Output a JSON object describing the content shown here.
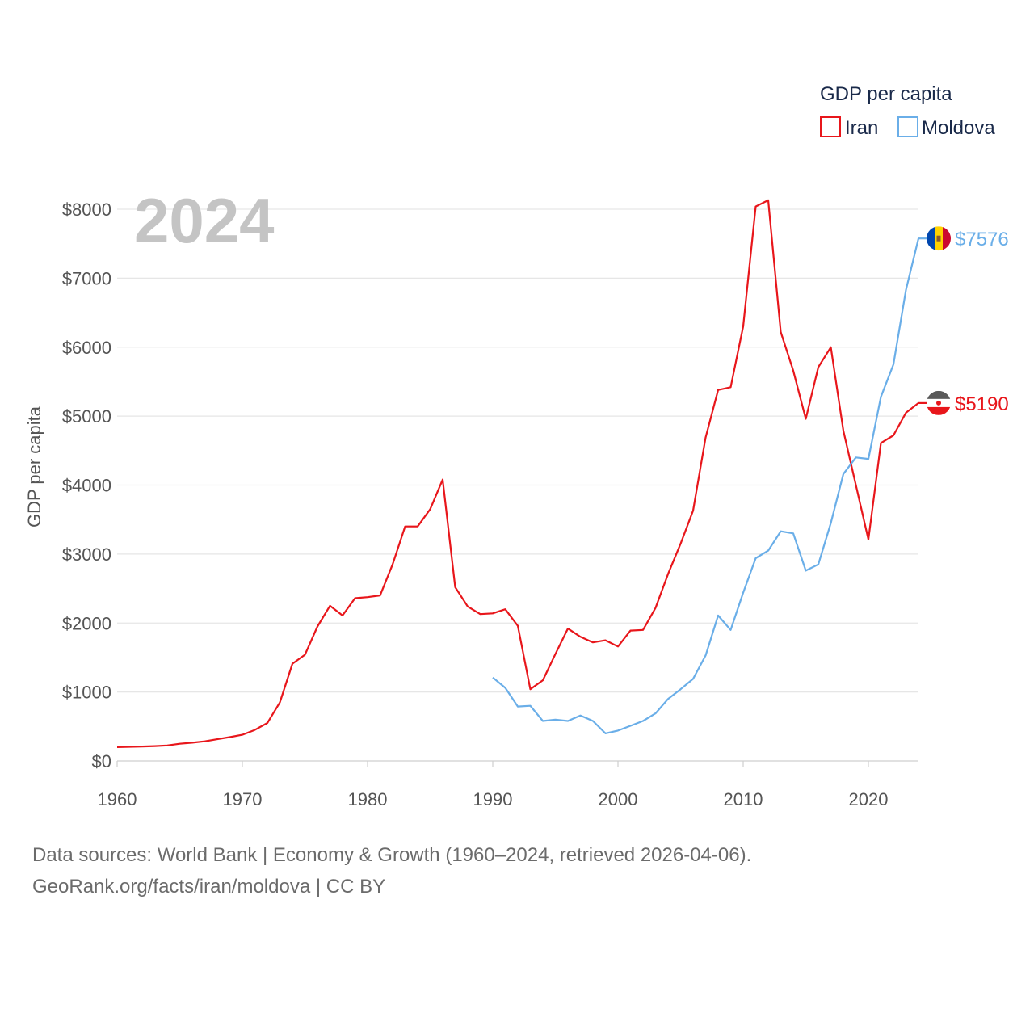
{
  "chart_data": {
    "type": "line",
    "year_label": "2024",
    "ylabel": "GDP per capita",
    "xlabel": "",
    "xlim": [
      1960,
      2024
    ],
    "ylim": [
      0,
      8000
    ],
    "x_ticks": [
      1960,
      1970,
      1980,
      1990,
      2000,
      2010,
      2020
    ],
    "y_ticks": [
      0,
      1000,
      2000,
      3000,
      4000,
      5000,
      6000,
      7000,
      8000
    ],
    "y_tick_labels": [
      "$0",
      "$1000",
      "$2000",
      "$3000",
      "$4000",
      "$5000",
      "$6000",
      "$7000",
      "$8000"
    ],
    "legend_title": "GDP per capita",
    "legend_position": "top-right",
    "grid": true,
    "series": [
      {
        "name": "Iran",
        "color": "#e8161b",
        "end_label": "$5190",
        "flag_icon": "iran-flag-icon",
        "x": [
          1960,
          1961,
          1962,
          1963,
          1964,
          1965,
          1966,
          1967,
          1968,
          1969,
          1970,
          1971,
          1972,
          1973,
          1974,
          1975,
          1976,
          1977,
          1978,
          1979,
          1980,
          1981,
          1982,
          1983,
          1984,
          1985,
          1986,
          1987,
          1988,
          1989,
          1990,
          1991,
          1992,
          1993,
          1994,
          1995,
          1996,
          1997,
          1998,
          1999,
          2000,
          2001,
          2002,
          2003,
          2004,
          2005,
          2006,
          2007,
          2008,
          2009,
          2010,
          2011,
          2012,
          2013,
          2014,
          2015,
          2016,
          2017,
          2018,
          2019,
          2020,
          2021,
          2022,
          2023,
          2024
        ],
        "values": [
          200,
          205,
          210,
          215,
          225,
          250,
          265,
          285,
          315,
          345,
          380,
          450,
          550,
          850,
          1410,
          1540,
          1950,
          2250,
          2110,
          2360,
          2375,
          2400,
          2850,
          3400,
          3400,
          3650,
          4080,
          2520,
          2240,
          2130,
          2140,
          2200,
          1960,
          1040,
          1170,
          1550,
          1920,
          1800,
          1720,
          1750,
          1660,
          1890,
          1900,
          2220,
          2710,
          3150,
          3630,
          4690,
          5380,
          5420,
          6300,
          8040,
          8130,
          6220,
          5660,
          4960,
          5710,
          6000,
          4790,
          4000,
          3210,
          4610,
          4720,
          5050,
          5190
        ]
      },
      {
        "name": "Moldova",
        "color": "#6aaee8",
        "end_label": "$7576",
        "flag_icon": "moldova-flag-icon",
        "x": [
          1990,
          1991,
          1992,
          1993,
          1994,
          1995,
          1996,
          1997,
          1998,
          1999,
          2000,
          2001,
          2002,
          2003,
          2004,
          2005,
          2006,
          2007,
          2008,
          2009,
          2010,
          2011,
          2012,
          2013,
          2014,
          2015,
          2016,
          2017,
          2018,
          2019,
          2020,
          2021,
          2022,
          2023,
          2024
        ],
        "values": [
          1210,
          1060,
          790,
          800,
          580,
          600,
          580,
          660,
          580,
          400,
          440,
          510,
          580,
          690,
          900,
          1040,
          1190,
          1530,
          2110,
          1900,
          2440,
          2940,
          3050,
          3330,
          3300,
          2760,
          2850,
          3450,
          4160,
          4400,
          4380,
          5280,
          5750,
          6830,
          7576
        ]
      }
    ]
  },
  "footer": {
    "line1": "Data sources: World Bank | Economy & Growth (1960–2024, retrieved 2026-04-06).",
    "line2": "GeoRank.org/facts/iran/moldova | CC BY"
  }
}
